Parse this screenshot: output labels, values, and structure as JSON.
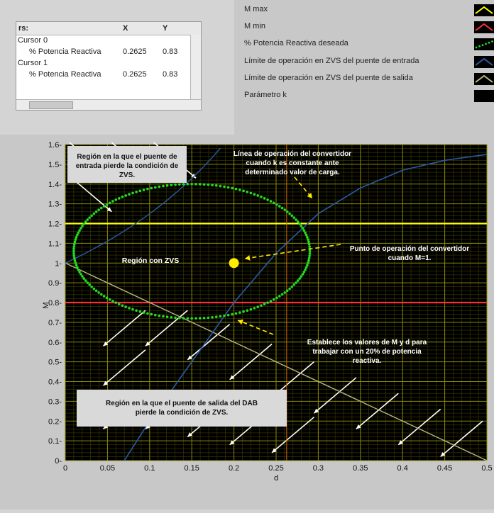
{
  "cursor_table": {
    "header": {
      "name": "rs:",
      "x": "X",
      "y": "Y"
    },
    "rows": [
      {
        "cursor": "Cursor 0",
        "plot": "% Potencia  Reactiva",
        "x": "0.2625",
        "y": "0.83"
      },
      {
        "cursor": "Cursor 1",
        "plot": "% Potencia  Reactiva",
        "x": "0.2625",
        "y": "0.83"
      }
    ]
  },
  "legend": [
    {
      "label": "M max",
      "color": "#ffff00",
      "style": "line"
    },
    {
      "label": "M min",
      "color": "#ff3030",
      "style": "line"
    },
    {
      "label": "% Potencia  Reactiva  deseada",
      "color": "#22dd22",
      "style": "dots"
    },
    {
      "label": "Límite de operación en ZVS del puente de entrada",
      "color": "#2a5aa8",
      "style": "line"
    },
    {
      "label": "Límite de operación en ZVS del puente de salida",
      "color": "#b8b880",
      "style": "line"
    },
    {
      "label": "Parámetro k",
      "color": "#000000",
      "style": "none"
    }
  ],
  "chart_data": {
    "type": "line",
    "xlabel": "d",
    "ylabel": "M",
    "xlim": [
      0,
      0.5
    ],
    "ylim": [
      0,
      1.6
    ],
    "x_ticks": [
      "0",
      "0.05",
      "0.1",
      "0.15",
      "0.2",
      "0.25",
      "0.3",
      "0.35",
      "0.4",
      "0.45",
      "0.5"
    ],
    "y_ticks": [
      "0",
      "0.1",
      "0.2",
      "0.3",
      "0.4",
      "0.5",
      "0.6",
      "0.7",
      "0.8",
      "0.9",
      "1",
      "1.1",
      "1.2",
      "1.3",
      "1.4",
      "1.5",
      "1.6"
    ],
    "grid": true,
    "series": [
      {
        "name": "M max",
        "x": [
          0,
          0.5
        ],
        "y": [
          1.2,
          1.2
        ]
      },
      {
        "name": "M min",
        "x": [
          0,
          0.5
        ],
        "y": [
          0.8,
          0.8
        ]
      },
      {
        "name": "Límite de operación en ZVS del puente de entrada",
        "x": [
          0,
          0.05,
          0.1,
          0.15,
          0.2,
          0.25,
          0.3,
          0.35,
          0.4,
          0.45,
          0.5
        ],
        "y": [
          1.0,
          1.109,
          1.25,
          1.429,
          0.0,
          0.0,
          0.0,
          0.0,
          0.0,
          0.0,
          0.0
        ]
      },
      {
        "name": "Límite de operación en ZVS del puente de salida",
        "x": [
          0,
          0.5
        ],
        "y": [
          1.0,
          0.0
        ]
      },
      {
        "name": "% Potencia  Reactiva  deseada",
        "ellipse_center": [
          0.15,
          1.06
        ],
        "x_range": [
          0.005,
          0.285
        ],
        "y_range": [
          0.72,
          1.4
        ]
      }
    ],
    "operating_line": {
      "x": [
        0.07,
        0.1,
        0.15,
        0.2,
        0.25,
        0.3,
        0.35,
        0.4,
        0.45,
        0.5
      ],
      "y": [
        0.0,
        0.2,
        0.5,
        0.8,
        1.05,
        1.25,
        1.38,
        1.47,
        1.52,
        1.55
      ]
    },
    "points": [
      {
        "x": 0.2,
        "y": 1.0,
        "color": "#ffea00"
      }
    ],
    "cursor_x": 0.2625,
    "annotations": [
      {
        "text": "Región en la que el puente de entrada pierde la condición de ZVS.",
        "boxed": true
      },
      {
        "text": "Línea de operación del convertidor cuando k es constante ante determinado valor de carga.",
        "boxed": false
      },
      {
        "text": "Región con ZVS",
        "boxed": false
      },
      {
        "text": "Punto de operación del convertidor cuando M=1.",
        "boxed": false
      },
      {
        "text": "Establece los valores de M y d para trabajar con un 20% de potencia reactiva.",
        "boxed": false
      },
      {
        "text": "Región en la que el puente de salida del DAB pierde la condición de ZVS.",
        "boxed": true
      }
    ]
  }
}
